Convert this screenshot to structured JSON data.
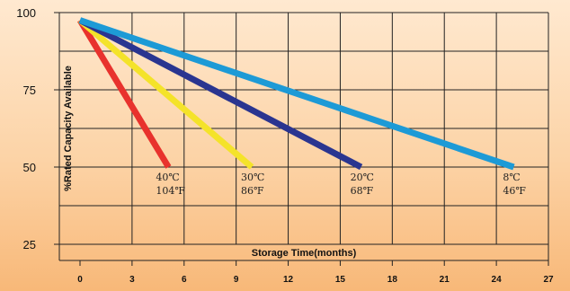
{
  "chart_data": {
    "type": "line",
    "title": "",
    "xlabel": "Storage Time(months)",
    "ylabel": "%Rated Capacity Available",
    "xlim": [
      0,
      27
    ],
    "ylim": [
      25,
      100
    ],
    "x_ticks": [
      0,
      3,
      6,
      9,
      12,
      15,
      18,
      21,
      24,
      27
    ],
    "y_ticks": [
      25,
      50,
      75,
      100
    ],
    "grid": true,
    "series": [
      {
        "name": "40℃ 104℉",
        "label_line1": "40℃",
        "label_line2": "104℉",
        "color": "#e8322d",
        "x": [
          0,
          5.1
        ],
        "y": [
          97.5,
          50
        ]
      },
      {
        "name": "30℃ 86℉",
        "label_line1": "30℃",
        "label_line2": "86℉",
        "color": "#f4e32a",
        "x": [
          0,
          9.9
        ],
        "y": [
          97.5,
          50
        ]
      },
      {
        "name": "20℃ 68℉",
        "label_line1": "20℃",
        "label_line2": "68℉",
        "color": "#2a3590",
        "x": [
          0,
          16.2
        ],
        "y": [
          97.5,
          50
        ]
      },
      {
        "name": "8℃ 46℉",
        "label_line1": "8℃",
        "label_line2": "46℉",
        "color": "#1d9ad6",
        "x": [
          0,
          25.0
        ],
        "y": [
          97.5,
          50
        ]
      }
    ]
  }
}
